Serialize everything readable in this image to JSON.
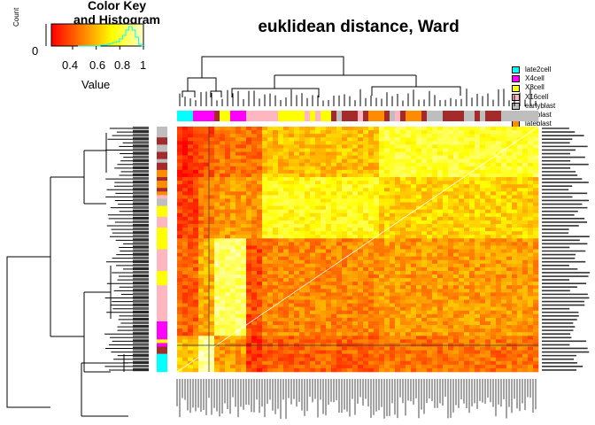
{
  "title": "euklidean distance, Ward",
  "color_key": {
    "title_lines": [
      "Color Key",
      "and Histogram"
    ],
    "value_label": "Value",
    "count_label": "Count",
    "count_tick": "0",
    "ticks": [
      "0.4",
      "0.6",
      "0.8",
      "1"
    ],
    "tick_values": [
      0.4,
      0.6,
      0.8,
      1.0
    ],
    "range": [
      0.22,
      1.0
    ],
    "histogram_color": "#00ffff"
  },
  "legend": [
    {
      "label": "late2cell",
      "color": "#00ffff"
    },
    {
      "label": "X4cell",
      "color": "#ff00ff"
    },
    {
      "label": "X8cell",
      "color": "#ffff00"
    },
    {
      "label": "X16cell",
      "color": "#ffb6c1"
    },
    {
      "label": "earlyblast",
      "color": "#bebebe"
    },
    {
      "label": "midblast",
      "color": "#a52a2a"
    },
    {
      "label": "lateblast",
      "color": "#ff8c00"
    }
  ],
  "chart_data": {
    "type": "heatmap",
    "title": "euklidean distance, Ward",
    "colormap": [
      "#ff0000",
      "#ff8000",
      "#ffff00",
      "#ffffc0"
    ],
    "value_range": [
      0.22,
      1.0
    ],
    "column_groups": [
      "late2cell",
      "X4cell",
      "X8cell",
      "X16cell",
      "earlyblast",
      "midblast",
      "lateblast"
    ],
    "column_dendrogram": "shown",
    "row_dendrogram": "shown",
    "row_labels": "illegible sample names",
    "column_labels": "illegible sample names"
  }
}
